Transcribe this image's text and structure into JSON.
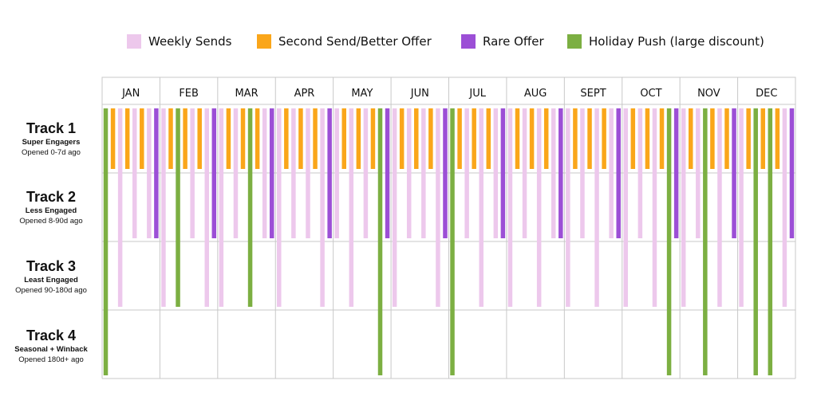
{
  "legend": [
    {
      "label": "Weekly Sends",
      "color": "#EDC8EC",
      "icon": "square-swatch"
    },
    {
      "label": "Second Send/Better Offer",
      "color": "#FAA61A",
      "icon": "square-swatch"
    },
    {
      "label": "Rare Offer",
      "color": "#9C4FD6",
      "icon": "square-swatch"
    },
    {
      "label": "Holiday Push (large discount)",
      "color": "#7CAF42",
      "icon": "square-swatch"
    }
  ],
  "months": [
    "JAN",
    "FEB",
    "MAR",
    "APR",
    "MAY",
    "JUN",
    "JUL",
    "AUG",
    "SEPT",
    "OCT",
    "NOV",
    "DEC"
  ],
  "tracks": [
    {
      "title": "Track 1",
      "subtitle": "Super Engagers",
      "desc": "Opened 0-7d ago"
    },
    {
      "title": "Track 2",
      "subtitle": "Less Engaged",
      "desc": "Opened 8-90d ago"
    },
    {
      "title": "Track 3",
      "subtitle": "Least Engaged",
      "desc": "Opened 90-180d ago"
    },
    {
      "title": "Track 4",
      "subtitle": "Seasonal + Winback",
      "desc": "Opened 180d+ ago"
    }
  ],
  "colors": {
    "weekly": "#EDC8EC",
    "second": "#FAA61A",
    "rare": "#9C4FD6",
    "holiday": "#7CAF42",
    "grid": "#C8C8C8"
  },
  "schedule": [
    [
      "H4",
      "S1",
      "W3",
      "S1",
      "W2",
      "S1",
      "W2",
      "R2"
    ],
    [
      "W3",
      "S1",
      "H3",
      "S1",
      "W2",
      "S1",
      "W3",
      "R2"
    ],
    [
      "W3",
      "S1",
      "W2",
      "S1",
      "H3",
      "S1",
      "W2",
      "R2"
    ],
    [
      "W3",
      "S1",
      "W2",
      "S1",
      "W2",
      "S1",
      "W3",
      "R2"
    ],
    [
      "W2",
      "S1",
      "W3",
      "S1",
      "W2",
      "S1",
      "H4",
      "R2"
    ],
    [
      "W3",
      "S1",
      "W2",
      "S1",
      "W2",
      "S1",
      "W3",
      "R2"
    ],
    [
      "H4",
      "S1",
      "W2",
      "S1",
      "W3",
      "S1",
      "W2",
      "R2"
    ],
    [
      "W3",
      "S1",
      "W2",
      "S1",
      "W3",
      "S1",
      "W2",
      "R2"
    ],
    [
      "W3",
      "S1",
      "W2",
      "S1",
      "W3",
      "S1",
      "W2",
      "R2"
    ],
    [
      "W3",
      "S1",
      "W2",
      "S1",
      "W3",
      "S1",
      "H4",
      "R2"
    ],
    [
      "W3",
      "S1",
      "W2",
      "H4",
      "S1",
      "W3",
      "S1",
      "R2"
    ],
    [
      "W3",
      "S1",
      "H4",
      "S1",
      "H4",
      "S1",
      "W3",
      "R2"
    ]
  ]
}
